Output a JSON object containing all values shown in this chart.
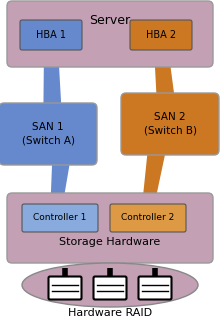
{
  "title": "Server",
  "footer": "Hardware RAID",
  "storage_label": "Storage Hardware",
  "hba1_label": "HBA 1",
  "hba2_label": "HBA 2",
  "san1_label": "SAN 1\n(Switch A)",
  "san2_label": "SAN 2\n(Switch B)",
  "ctrl1_label": "Controller 1",
  "ctrl2_label": "Controller 2",
  "color_blue": "#6688CC",
  "color_orange": "#CC7722",
  "color_pink": "#C4A0B4",
  "color_ctrl_blue": "#88AADD",
  "color_ctrl_orange": "#DD9944",
  "bg_color": "#FFFFFF",
  "figsize": [
    2.2,
    3.22
  ],
  "dpi": 100
}
